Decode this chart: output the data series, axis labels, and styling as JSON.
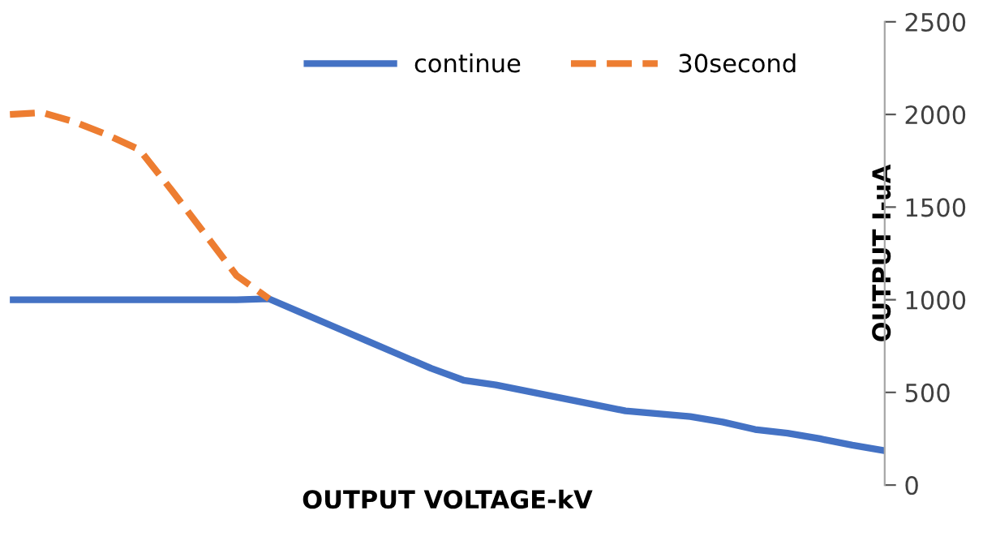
{
  "chart_data": {
    "type": "line",
    "xlabel": "OUTPUT VOLTAGE-kV",
    "ylabel": "OUTPUT I-uA",
    "categories": [
      null,
      null,
      null,
      null,
      null,
      null,
      null,
      null,
      null,
      null,
      null,
      null,
      null,
      null,
      null,
      null,
      null,
      null,
      null,
      null,
      null,
      null,
      null,
      null,
      null,
      null,
      null,
      null
    ],
    "series": [
      {
        "name": "continue",
        "color": "#4472c4",
        "line_style": "solid",
        "values": [
          1000,
          1000,
          1000,
          1000,
          1000,
          1000,
          1000,
          1000,
          1005,
          930,
          855,
          780,
          705,
          630,
          566,
          540,
          505,
          470,
          435,
          400,
          385,
          370,
          340,
          300,
          280,
          250,
          215,
          185
        ]
      },
      {
        "name": "30second",
        "color": "#ed7d31",
        "line_style": "dashed",
        "values": [
          2000,
          2010,
          1960,
          1890,
          1810,
          1590,
          1360,
          1130,
          1005,
          null,
          null,
          null,
          null,
          null,
          null,
          null,
          null,
          null,
          null,
          null,
          null,
          null,
          null,
          null,
          null,
          null,
          null,
          null
        ]
      }
    ],
    "ylim": [
      0,
      2500
    ],
    "yticks": [
      0,
      500,
      1000,
      1500,
      2000,
      2500
    ],
    "tick_labels": "y",
    "grid": false,
    "legend": "top",
    "marker": "none"
  }
}
